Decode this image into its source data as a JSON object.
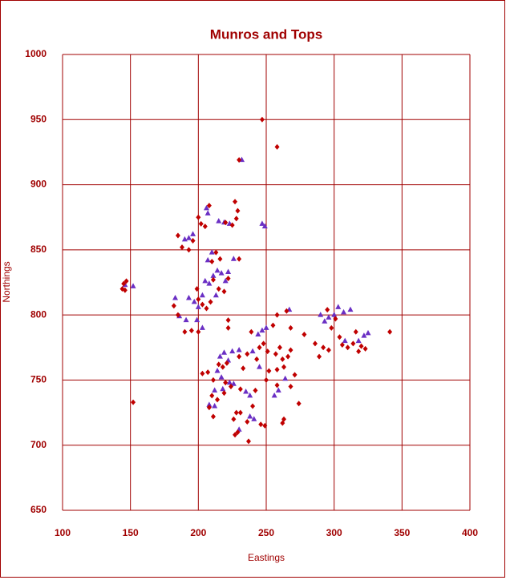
{
  "chart_data": {
    "type": "scatter",
    "title": "Munros and Tops",
    "x_label": "Eastings",
    "y_label": "Northings",
    "xlim": [
      100,
      400
    ],
    "ylim": [
      650,
      1000
    ],
    "xticks": [
      100,
      150,
      200,
      250,
      300,
      350,
      400
    ],
    "yticks": [
      650,
      700,
      750,
      800,
      850,
      900,
      950,
      1000
    ],
    "grid": true,
    "series": [
      {
        "color": "#6a2fc4",
        "marker": "triangle",
        "x": [
          146,
          152,
          183,
          186,
          191,
          193,
          197,
          200,
          203,
          205,
          208,
          211,
          214,
          217,
          220,
          213,
          207,
          210,
          190,
          193,
          196,
          206,
          207,
          215,
          219,
          223,
          226,
          232,
          247,
          249,
          216,
          219,
          222,
          225,
          214,
          217,
          223,
          212,
          218,
          208,
          212,
          226,
          230,
          235,
          238,
          238,
          241,
          240,
          244,
          247,
          250,
          245,
          256,
          259,
          264,
          267,
          290,
          293,
          296,
          300,
          303,
          307,
          312,
          318,
          322,
          325,
          308,
          230,
          203,
          222,
          199
        ],
        "values": [
          823,
          822,
          813,
          799,
          796,
          813,
          810,
          806,
          815,
          826,
          824,
          830,
          834,
          832,
          826,
          815,
          842,
          848,
          858,
          859,
          862,
          882,
          878,
          872,
          871,
          870,
          843,
          919,
          870,
          868,
          768,
          771,
          765,
          772,
          757,
          752,
          748,
          742,
          743,
          731,
          730,
          747,
          712,
          741,
          738,
          722,
          720,
          772,
          785,
          788,
          790,
          760,
          738,
          742,
          751,
          804,
          800,
          795,
          798,
          800,
          806,
          802,
          804,
          780,
          784,
          786,
          780,
          773,
          790,
          833,
          796
        ]
      },
      {
        "color": "#c00000",
        "marker": "diamond",
        "x": [
          247,
          258,
          230,
          152,
          341,
          144,
          145,
          147,
          146,
          185,
          188,
          193,
          196,
          200,
          202,
          205,
          208,
          213,
          210,
          216,
          229,
          227,
          228,
          230,
          220,
          225,
          182,
          185,
          190,
          195,
          199,
          200,
          203,
          206,
          209,
          215,
          219,
          222,
          211,
          200,
          222,
          222,
          207,
          211,
          215,
          218,
          221,
          210,
          214,
          220,
          224,
          228,
          231,
          226,
          227,
          229,
          237,
          236,
          240,
          242,
          236,
          239,
          243,
          245,
          248,
          251,
          252,
          250,
          258,
          257,
          260,
          262,
          266,
          263,
          258,
          262,
          263,
          268,
          271,
          274,
          265,
          258,
          268,
          255,
          286,
          289,
          292,
          296,
          298,
          295,
          301,
          304,
          306,
          310,
          314,
          318,
          320,
          323,
          316,
          231,
          233,
          230,
          219,
          203,
          208,
          211,
          246,
          249,
          278,
          268
        ],
        "values": [
          950,
          929,
          919,
          733,
          787,
          820,
          824,
          826,
          819,
          861,
          852,
          850,
          857,
          875,
          870,
          868,
          884,
          848,
          841,
          843,
          880,
          887,
          874,
          843,
          871,
          869,
          807,
          800,
          787,
          788,
          820,
          812,
          808,
          805,
          810,
          820,
          818,
          828,
          827,
          787,
          790,
          796,
          756,
          750,
          762,
          760,
          763,
          738,
          735,
          748,
          745,
          725,
          725,
          720,
          708,
          710,
          703,
          718,
          730,
          742,
          770,
          787,
          766,
          775,
          778,
          772,
          757,
          750,
          758,
          770,
          775,
          766,
          768,
          760,
          746,
          717,
          720,
          745,
          754,
          732,
          803,
          800,
          790,
          792,
          778,
          768,
          775,
          773,
          790,
          804,
          797,
          783,
          777,
          775,
          778,
          772,
          776,
          774,
          787,
          743,
          759,
          768,
          740,
          755,
          729,
          722,
          716,
          715,
          785,
          773
        ]
      }
    ]
  }
}
